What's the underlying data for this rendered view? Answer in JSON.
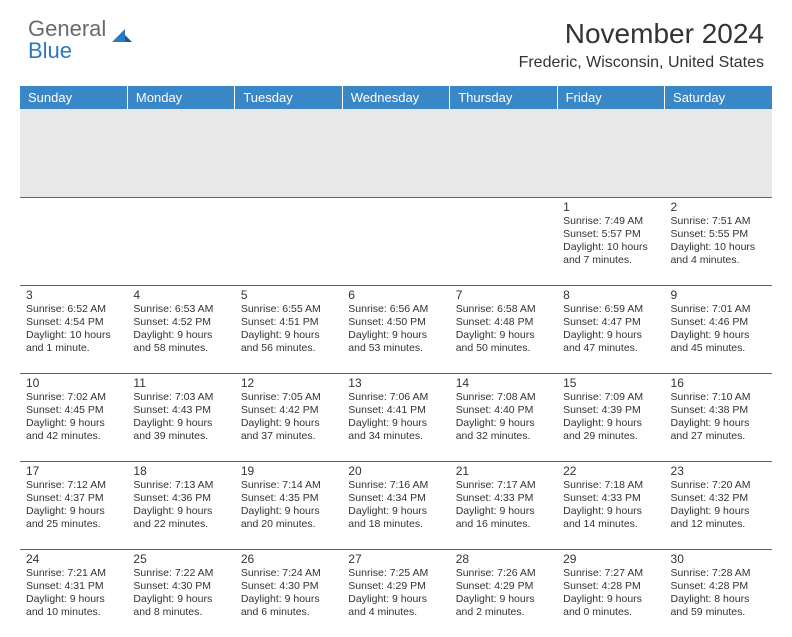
{
  "logo": {
    "line1": "General",
    "line2": "Blue"
  },
  "title": "November 2024",
  "location": "Frederic, Wisconsin, United States",
  "colors": {
    "header_bg": "#3a87c8",
    "header_text": "#ffffff",
    "row_divider": "#3a6a9a",
    "sub_header_bg": "#e8e8e8",
    "logo_gray": "#6a6a6a",
    "logo_blue": "#2a7ac0",
    "body_text": "#333333",
    "page_bg": "#ffffff"
  },
  "typography": {
    "title_fontsize": 28,
    "location_fontsize": 16,
    "weekday_fontsize": 13,
    "daynum_fontsize": 12,
    "cell_fontsize": 10.5
  },
  "weekdays": [
    "Sunday",
    "Monday",
    "Tuesday",
    "Wednesday",
    "Thursday",
    "Friday",
    "Saturday"
  ],
  "weeks": [
    [
      null,
      null,
      null,
      null,
      null,
      {
        "day": "1",
        "sunrise": "Sunrise: 7:49 AM",
        "sunset": "Sunset: 5:57 PM",
        "daylight": "Daylight: 10 hours and 7 minutes."
      },
      {
        "day": "2",
        "sunrise": "Sunrise: 7:51 AM",
        "sunset": "Sunset: 5:55 PM",
        "daylight": "Daylight: 10 hours and 4 minutes."
      }
    ],
    [
      {
        "day": "3",
        "sunrise": "Sunrise: 6:52 AM",
        "sunset": "Sunset: 4:54 PM",
        "daylight": "Daylight: 10 hours and 1 minute."
      },
      {
        "day": "4",
        "sunrise": "Sunrise: 6:53 AM",
        "sunset": "Sunset: 4:52 PM",
        "daylight": "Daylight: 9 hours and 58 minutes."
      },
      {
        "day": "5",
        "sunrise": "Sunrise: 6:55 AM",
        "sunset": "Sunset: 4:51 PM",
        "daylight": "Daylight: 9 hours and 56 minutes."
      },
      {
        "day": "6",
        "sunrise": "Sunrise: 6:56 AM",
        "sunset": "Sunset: 4:50 PM",
        "daylight": "Daylight: 9 hours and 53 minutes."
      },
      {
        "day": "7",
        "sunrise": "Sunrise: 6:58 AM",
        "sunset": "Sunset: 4:48 PM",
        "daylight": "Daylight: 9 hours and 50 minutes."
      },
      {
        "day": "8",
        "sunrise": "Sunrise: 6:59 AM",
        "sunset": "Sunset: 4:47 PM",
        "daylight": "Daylight: 9 hours and 47 minutes."
      },
      {
        "day": "9",
        "sunrise": "Sunrise: 7:01 AM",
        "sunset": "Sunset: 4:46 PM",
        "daylight": "Daylight: 9 hours and 45 minutes."
      }
    ],
    [
      {
        "day": "10",
        "sunrise": "Sunrise: 7:02 AM",
        "sunset": "Sunset: 4:45 PM",
        "daylight": "Daylight: 9 hours and 42 minutes."
      },
      {
        "day": "11",
        "sunrise": "Sunrise: 7:03 AM",
        "sunset": "Sunset: 4:43 PM",
        "daylight": "Daylight: 9 hours and 39 minutes."
      },
      {
        "day": "12",
        "sunrise": "Sunrise: 7:05 AM",
        "sunset": "Sunset: 4:42 PM",
        "daylight": "Daylight: 9 hours and 37 minutes."
      },
      {
        "day": "13",
        "sunrise": "Sunrise: 7:06 AM",
        "sunset": "Sunset: 4:41 PM",
        "daylight": "Daylight: 9 hours and 34 minutes."
      },
      {
        "day": "14",
        "sunrise": "Sunrise: 7:08 AM",
        "sunset": "Sunset: 4:40 PM",
        "daylight": "Daylight: 9 hours and 32 minutes."
      },
      {
        "day": "15",
        "sunrise": "Sunrise: 7:09 AM",
        "sunset": "Sunset: 4:39 PM",
        "daylight": "Daylight: 9 hours and 29 minutes."
      },
      {
        "day": "16",
        "sunrise": "Sunrise: 7:10 AM",
        "sunset": "Sunset: 4:38 PM",
        "daylight": "Daylight: 9 hours and 27 minutes."
      }
    ],
    [
      {
        "day": "17",
        "sunrise": "Sunrise: 7:12 AM",
        "sunset": "Sunset: 4:37 PM",
        "daylight": "Daylight: 9 hours and 25 minutes."
      },
      {
        "day": "18",
        "sunrise": "Sunrise: 7:13 AM",
        "sunset": "Sunset: 4:36 PM",
        "daylight": "Daylight: 9 hours and 22 minutes."
      },
      {
        "day": "19",
        "sunrise": "Sunrise: 7:14 AM",
        "sunset": "Sunset: 4:35 PM",
        "daylight": "Daylight: 9 hours and 20 minutes."
      },
      {
        "day": "20",
        "sunrise": "Sunrise: 7:16 AM",
        "sunset": "Sunset: 4:34 PM",
        "daylight": "Daylight: 9 hours and 18 minutes."
      },
      {
        "day": "21",
        "sunrise": "Sunrise: 7:17 AM",
        "sunset": "Sunset: 4:33 PM",
        "daylight": "Daylight: 9 hours and 16 minutes."
      },
      {
        "day": "22",
        "sunrise": "Sunrise: 7:18 AM",
        "sunset": "Sunset: 4:33 PM",
        "daylight": "Daylight: 9 hours and 14 minutes."
      },
      {
        "day": "23",
        "sunrise": "Sunrise: 7:20 AM",
        "sunset": "Sunset: 4:32 PM",
        "daylight": "Daylight: 9 hours and 12 minutes."
      }
    ],
    [
      {
        "day": "24",
        "sunrise": "Sunrise: 7:21 AM",
        "sunset": "Sunset: 4:31 PM",
        "daylight": "Daylight: 9 hours and 10 minutes."
      },
      {
        "day": "25",
        "sunrise": "Sunrise: 7:22 AM",
        "sunset": "Sunset: 4:30 PM",
        "daylight": "Daylight: 9 hours and 8 minutes."
      },
      {
        "day": "26",
        "sunrise": "Sunrise: 7:24 AM",
        "sunset": "Sunset: 4:30 PM",
        "daylight": "Daylight: 9 hours and 6 minutes."
      },
      {
        "day": "27",
        "sunrise": "Sunrise: 7:25 AM",
        "sunset": "Sunset: 4:29 PM",
        "daylight": "Daylight: 9 hours and 4 minutes."
      },
      {
        "day": "28",
        "sunrise": "Sunrise: 7:26 AM",
        "sunset": "Sunset: 4:29 PM",
        "daylight": "Daylight: 9 hours and 2 minutes."
      },
      {
        "day": "29",
        "sunrise": "Sunrise: 7:27 AM",
        "sunset": "Sunset: 4:28 PM",
        "daylight": "Daylight: 9 hours and 0 minutes."
      },
      {
        "day": "30",
        "sunrise": "Sunrise: 7:28 AM",
        "sunset": "Sunset: 4:28 PM",
        "daylight": "Daylight: 8 hours and 59 minutes."
      }
    ]
  ]
}
